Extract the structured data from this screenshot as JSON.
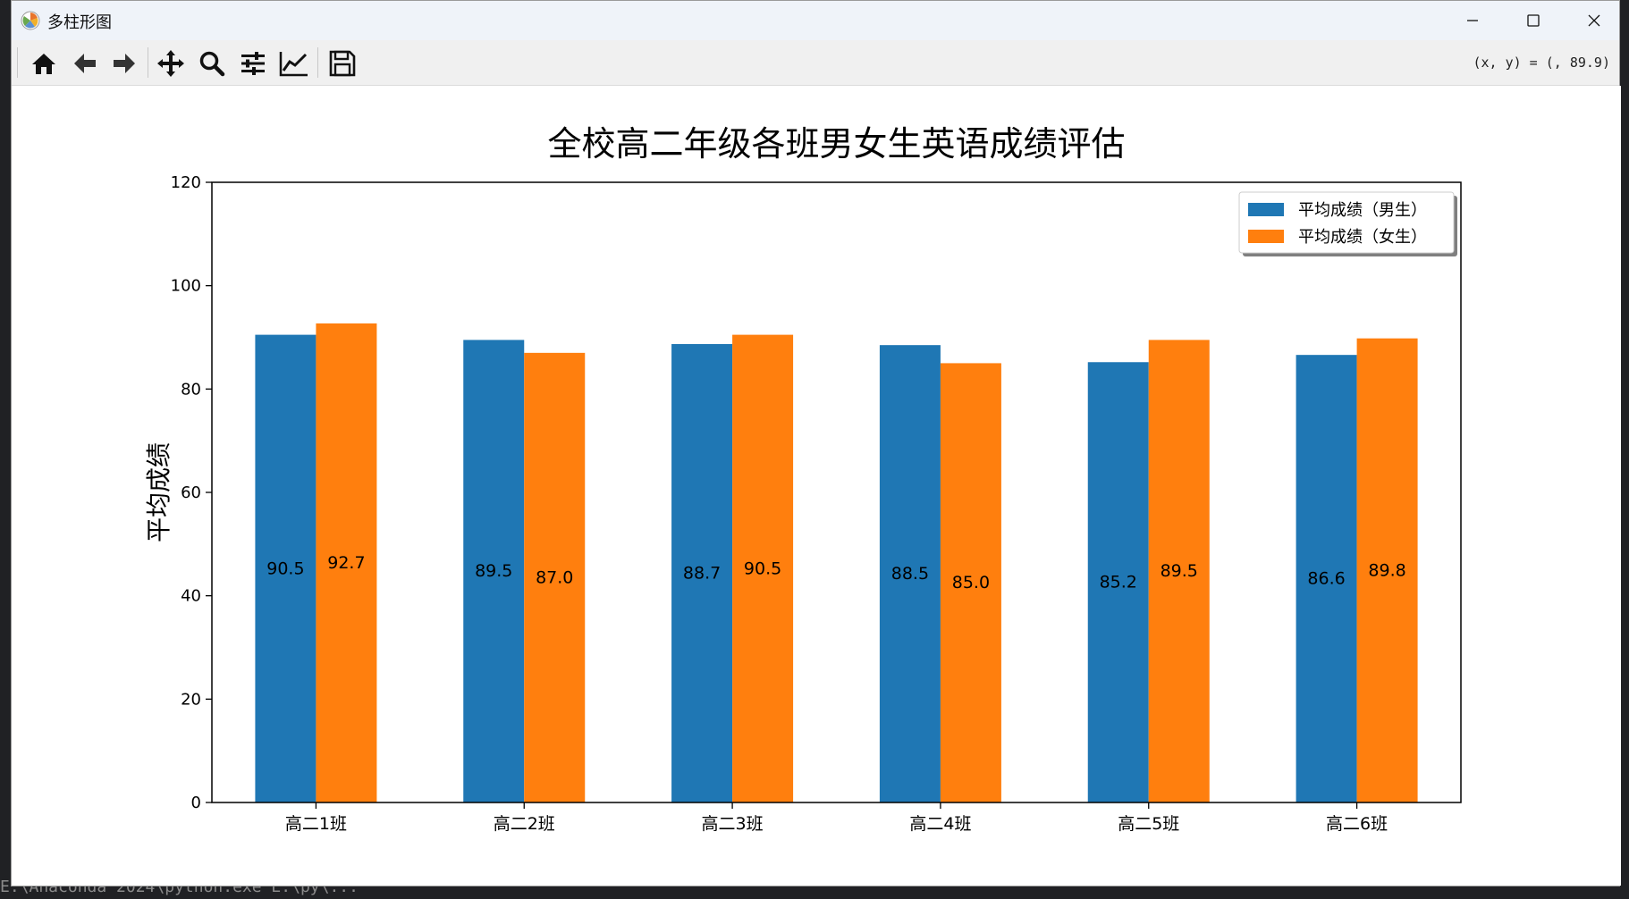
{
  "window": {
    "title": "多柱形图"
  },
  "toolbar": {
    "buttons": [
      {
        "name": "home",
        "icon": "home-icon"
      },
      {
        "name": "back",
        "icon": "arrow-left-icon"
      },
      {
        "name": "forward",
        "icon": "arrow-right-icon"
      },
      {
        "name": "pan",
        "icon": "move-icon"
      },
      {
        "name": "zoom",
        "icon": "magnifier-icon"
      },
      {
        "name": "configure-subplots",
        "icon": "sliders-icon"
      },
      {
        "name": "edit-axes",
        "icon": "line-chart-icon"
      },
      {
        "name": "save",
        "icon": "floppy-disk-icon"
      }
    ],
    "coords": "(x, y) = (, 89.9)"
  },
  "background_terminal_text": "E:\\Anaconda 2024\\python.exe  E:\\py\\...",
  "chart_data": {
    "type": "bar",
    "title": "全校高二年级各班男女生英语成绩评估",
    "xlabel": "",
    "ylabel": "平均成绩",
    "ylim": [
      0,
      120
    ],
    "yticks": [
      "0",
      "20",
      "40",
      "60",
      "80",
      "100",
      "120"
    ],
    "categories": [
      "高二1班",
      "高二2班",
      "高二3班",
      "高二4班",
      "高二5班",
      "高二6班"
    ],
    "series": [
      {
        "name": "平均成绩（男生）",
        "color": "#1f77b4",
        "values": [
          90.5,
          89.5,
          88.7,
          88.5,
          85.2,
          86.6
        ],
        "labels": [
          "90.5",
          "89.5",
          "88.7",
          "88.5",
          "85.2",
          "86.6"
        ]
      },
      {
        "name": "平均成绩（女生）",
        "color": "#ff7f0e",
        "values": [
          92.7,
          87.0,
          90.5,
          85.0,
          89.5,
          89.8
        ],
        "labels": [
          "92.7",
          "87.0",
          "90.5",
          "85.0",
          "89.5",
          "89.8"
        ]
      }
    ],
    "legend_position": "top-right",
    "grid": false
  }
}
